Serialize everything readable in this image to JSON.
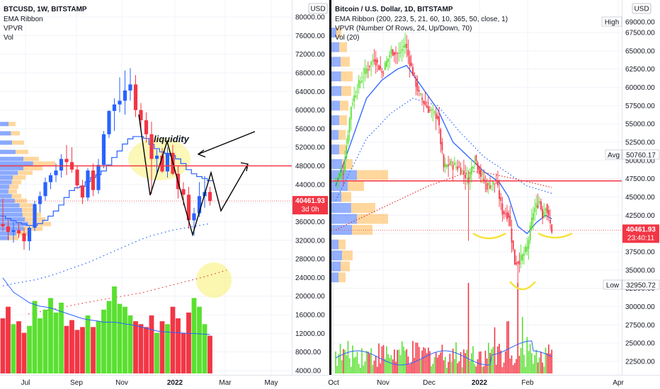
{
  "colors": {
    "up": "#5ae031",
    "down": "#f23645",
    "ema_blue": "#2962ff",
    "ema_red_dotted": "#e53935",
    "horizontal_line": "#f23645",
    "vpvr_blue": "#2962ff",
    "vpvr_orange": "#ffb74d",
    "highlight": "#f7f061",
    "price_tag": "#f23645",
    "divider": "#000000"
  },
  "chart_data": [
    {
      "type": "candlestick",
      "panel": "left",
      "title": "BTCUSD, 1W, BITSTAMP",
      "indicators": [
        "EMA Ribbon",
        "VPVR",
        "Vol"
      ],
      "currency": "USD",
      "y_ticks": [
        80000,
        76000,
        72000,
        68000,
        64000,
        60000,
        56000,
        52000,
        48000,
        44000,
        40000,
        36000,
        32000,
        28000,
        24000,
        20000,
        16000,
        12000,
        8000,
        4000
      ],
      "y_tick_labels": [
        "80000.00",
        "76000.00",
        "72000.00",
        "68000.00",
        "64000.00",
        "60000.00",
        "56000.00",
        "52000.00",
        "48000.00",
        "44000.00",
        "40000.00",
        "36000.00",
        "32000.00",
        "28000.00",
        "24000.00",
        "20000.00",
        "16000.00",
        "12000.00",
        "8000.00",
        "4000.00"
      ],
      "ylim": [
        2000,
        82000
      ],
      "x_ticks": [
        "Jul",
        "Sep",
        "Nov",
        "2022",
        "Mar",
        "May"
      ],
      "last_price": "40461.93",
      "countdown": "3d 0h",
      "horizontal_level": 48000,
      "annotations": [
        "liquidity"
      ],
      "candles": [
        {
          "o": 35500,
          "h": 41000,
          "l": 34000,
          "c": 35000
        },
        {
          "o": 35000,
          "h": 36500,
          "l": 32000,
          "c": 33800
        },
        {
          "o": 33800,
          "h": 36000,
          "l": 31500,
          "c": 34200
        },
        {
          "o": 34200,
          "h": 35800,
          "l": 32500,
          "c": 33500
        },
        {
          "o": 33500,
          "h": 34800,
          "l": 30000,
          "c": 31800
        },
        {
          "o": 31800,
          "h": 35000,
          "l": 29800,
          "c": 34700
        },
        {
          "o": 34700,
          "h": 40500,
          "l": 34000,
          "c": 39800
        },
        {
          "o": 39800,
          "h": 42500,
          "l": 38000,
          "c": 41500
        },
        {
          "o": 41500,
          "h": 45500,
          "l": 40500,
          "c": 44500
        },
        {
          "o": 44500,
          "h": 46500,
          "l": 43000,
          "c": 46000
        },
        {
          "o": 46000,
          "h": 48500,
          "l": 44500,
          "c": 47000
        },
        {
          "o": 47000,
          "h": 50500,
          "l": 45500,
          "c": 49500
        },
        {
          "o": 49500,
          "h": 52500,
          "l": 46000,
          "c": 48800
        },
        {
          "o": 48800,
          "h": 52000,
          "l": 46500,
          "c": 47200
        },
        {
          "o": 47200,
          "h": 48000,
          "l": 43000,
          "c": 43800
        },
        {
          "o": 43800,
          "h": 45000,
          "l": 39800,
          "c": 41200
        },
        {
          "o": 41200,
          "h": 47500,
          "l": 40500,
          "c": 47000
        },
        {
          "o": 47000,
          "h": 48500,
          "l": 41500,
          "c": 42800
        },
        {
          "o": 42800,
          "h": 49500,
          "l": 42000,
          "c": 48200
        },
        {
          "o": 48200,
          "h": 55500,
          "l": 47500,
          "c": 54800
        },
        {
          "o": 54800,
          "h": 60000,
          "l": 54000,
          "c": 59800
        },
        {
          "o": 59800,
          "h": 62500,
          "l": 55500,
          "c": 61200
        },
        {
          "o": 61200,
          "h": 67000,
          "l": 59500,
          "c": 62000
        },
        {
          "o": 62000,
          "h": 68500,
          "l": 59000,
          "c": 64200
        },
        {
          "o": 64200,
          "h": 69000,
          "l": 62000,
          "c": 65500
        },
        {
          "o": 65500,
          "h": 67500,
          "l": 58500,
          "c": 60000
        },
        {
          "o": 60000,
          "h": 61500,
          "l": 55500,
          "c": 57800
        },
        {
          "o": 57800,
          "h": 59500,
          "l": 53000,
          "c": 54800
        },
        {
          "o": 54800,
          "h": 57500,
          "l": 42000,
          "c": 49500
        },
        {
          "o": 49500,
          "h": 51500,
          "l": 46500,
          "c": 50200
        },
        {
          "o": 50200,
          "h": 51800,
          "l": 46500,
          "c": 46800
        },
        {
          "o": 46800,
          "h": 52000,
          "l": 45500,
          "c": 50800
        },
        {
          "o": 50800,
          "h": 52500,
          "l": 46000,
          "c": 46300
        },
        {
          "o": 46300,
          "h": 48000,
          "l": 41000,
          "c": 43000
        },
        {
          "o": 43000,
          "h": 44500,
          "l": 39500,
          "c": 41800
        },
        {
          "o": 41800,
          "h": 43500,
          "l": 34500,
          "c": 36300
        },
        {
          "o": 36300,
          "h": 39000,
          "l": 33000,
          "c": 37800
        },
        {
          "o": 37800,
          "h": 44500,
          "l": 37000,
          "c": 41500
        },
        {
          "o": 41500,
          "h": 45800,
          "l": 39000,
          "c": 42400
        },
        {
          "o": 42400,
          "h": 43500,
          "l": 39500,
          "c": 40460
        }
      ],
      "ema_blue": [
        37200,
        36700,
        36200,
        35800,
        35500,
        35200,
        35200,
        35600,
        36300,
        37200,
        38300,
        39600,
        41200,
        42700,
        43300,
        43600,
        44600,
        45500,
        46100,
        46900,
        48200,
        49800,
        51200,
        52700,
        53800,
        54300,
        54300,
        53900,
        52600,
        51700,
        51000,
        50600,
        50200,
        49500,
        48500,
        47200,
        46300,
        45700,
        45300,
        44800
      ],
      "ema_red_dotted": [
        22200,
        22400,
        22700,
        22900,
        23100,
        23300,
        23500,
        23800,
        24100,
        24400,
        24800,
        25200,
        25600,
        26000,
        26400,
        26800,
        27200,
        27700,
        28200,
        28700,
        29200,
        29700,
        30200,
        30700,
        31200,
        31700,
        32200,
        32600,
        33000,
        33300,
        33600,
        33900,
        34200,
        34400,
        34600,
        34800,
        35000,
        35200,
        35400,
        35600
      ],
      "volume": [
        9.5,
        11.5,
        8.5,
        9.0,
        7.0,
        8.2,
        12.5,
        9.5,
        11.0,
        13.0,
        10.5,
        12.2,
        8.2,
        9.2,
        7.5,
        8.0,
        10.0,
        8.0,
        9.0,
        11.0,
        12.5,
        15.0,
        12.0,
        11.5,
        10.0,
        9.0,
        8.5,
        8.0,
        10.0,
        7.0,
        9.0,
        8.5,
        11.5,
        9.5,
        7.0,
        10.5,
        13.0,
        11.5,
        8.5,
        6.5
      ],
      "volume_blue_line": [
        27.0,
        25.0,
        23.0,
        22.0,
        21.0,
        20.0,
        19.5,
        19.0,
        18.8,
        18.5,
        18.0,
        17.5,
        17.0,
        16.5,
        16.0,
        15.5,
        15.2,
        15.0,
        14.8,
        14.5,
        14.5,
        14.5,
        14.3,
        14.0,
        13.8,
        13.5,
        13.2,
        12.8,
        12.4,
        12.0,
        11.8,
        11.7,
        11.6,
        11.5,
        11.4,
        11.3,
        11.3,
        11.2,
        11.1,
        11.0
      ],
      "vpvr_levels": [
        {
          "price": 57000,
          "total": 22,
          "up": 0.55
        },
        {
          "price": 55000,
          "total": 28,
          "up": 0.55
        },
        {
          "price": 53000,
          "total": 34,
          "up": 0.5
        },
        {
          "price": 51000,
          "total": 40,
          "up": 0.55
        },
        {
          "price": 49500,
          "total": 55,
          "up": 0.6
        },
        {
          "price": 48500,
          "total": 78,
          "up": 0.6
        },
        {
          "price": 47500,
          "total": 60,
          "up": 0.55
        },
        {
          "price": 46500,
          "total": 46,
          "up": 0.55
        },
        {
          "price": 45500,
          "total": 36,
          "up": 0.5
        },
        {
          "price": 44500,
          "total": 30,
          "up": 0.55
        },
        {
          "price": 43500,
          "total": 26,
          "up": 0.5
        },
        {
          "price": 42500,
          "total": 24,
          "up": 0.5
        },
        {
          "price": 41500,
          "total": 30,
          "up": 0.55
        },
        {
          "price": 40500,
          "total": 38,
          "up": 0.55
        },
        {
          "price": 39500,
          "total": 46,
          "up": 0.6
        },
        {
          "price": 38500,
          "total": 52,
          "up": 0.6
        },
        {
          "price": 37500,
          "total": 58,
          "up": 0.55
        },
        {
          "price": 36500,
          "total": 64,
          "up": 0.55
        },
        {
          "price": 35500,
          "total": 72,
          "up": 0.55
        },
        {
          "price": 34500,
          "total": 60,
          "up": 0.55
        },
        {
          "price": 33500,
          "total": 42,
          "up": 0.55
        },
        {
          "price": 32500,
          "total": 26,
          "up": 0.5
        }
      ]
    },
    {
      "type": "candlestick",
      "panel": "right",
      "title": "Bitcoin / U.S. Dollar, 1D, BITSTAMP",
      "indicators": [
        "EMA Ribbon (200, 223, 5, 21, 60, 10, 365, 50, close, 1)",
        "VPVR (Number Of Rows, 24, Up/Down, 70)",
        "Vol (20)"
      ],
      "currency": "USD",
      "y_ticks": [
        69000,
        67500,
        65000,
        62500,
        60000,
        57500,
        55000,
        52500,
        50000,
        47500,
        45000,
        42500,
        40000,
        37500,
        35000,
        32500,
        30000,
        27500,
        25000,
        22500
      ],
      "y_tick_labels": [
        "69000.00",
        "67500.00",
        "65000.00",
        "62500.00",
        "60000.00",
        "57500.00",
        "55000.00",
        "52500.00",
        "50000.00",
        "47500.00",
        "45000.00",
        "42500.00",
        "40000.00",
        "37500.00",
        "35000.00",
        "32500.00",
        "30000.00",
        "27500.00",
        "25000.00",
        "22500.00"
      ],
      "ylim": [
        21500,
        70000
      ],
      "x_ticks": [
        "Oct",
        "Nov",
        "Dec",
        "2022",
        "Feb",
        "Apr"
      ],
      "high_label": "High",
      "avg_label": "Avg",
      "avg_value": "50760.17",
      "low_label": "Low",
      "low_value": "32950.72",
      "last_price": "40461.93",
      "countdown": "23:40:11",
      "horizontal_level": 47200,
      "anchors": [
        {
          "i": 0,
          "c": 47500
        },
        {
          "i": 5,
          "c": 48500
        },
        {
          "i": 10,
          "c": 57500
        },
        {
          "i": 14,
          "c": 60000
        },
        {
          "i": 20,
          "c": 62500
        },
        {
          "i": 25,
          "c": 64000
        },
        {
          "i": 30,
          "c": 62000
        },
        {
          "i": 36,
          "c": 65000
        },
        {
          "i": 41,
          "c": 64500
        },
        {
          "i": 45,
          "c": 66000
        },
        {
          "i": 48,
          "c": 63500
        },
        {
          "i": 54,
          "c": 59000
        },
        {
          "i": 60,
          "c": 57000
        },
        {
          "i": 66,
          "c": 56000
        },
        {
          "i": 70,
          "c": 49000
        },
        {
          "i": 74,
          "c": 49500
        },
        {
          "i": 80,
          "c": 49000
        },
        {
          "i": 86,
          "c": 47500
        },
        {
          "i": 90,
          "c": 50500
        },
        {
          "i": 94,
          "c": 48000
        },
        {
          "i": 98,
          "c": 46500
        },
        {
          "i": 104,
          "c": 47000
        },
        {
          "i": 108,
          "c": 43000
        },
        {
          "i": 112,
          "c": 42500
        },
        {
          "i": 116,
          "c": 36000
        },
        {
          "i": 120,
          "c": 36500
        },
        {
          "i": 124,
          "c": 38000
        },
        {
          "i": 128,
          "c": 43000
        },
        {
          "i": 132,
          "c": 44500
        },
        {
          "i": 134,
          "c": 42500
        },
        {
          "i": 136,
          "c": 44000
        },
        {
          "i": 138,
          "c": 42000
        },
        {
          "i": 140,
          "c": 40460
        }
      ],
      "spikes": [
        {
          "i": 86,
          "l": 39000
        },
        {
          "i": 118,
          "l": 33000
        }
      ],
      "ema_blue_anchors": [
        {
          "i": 0,
          "v": 46500
        },
        {
          "i": 10,
          "v": 52500
        },
        {
          "i": 20,
          "v": 58500
        },
        {
          "i": 30,
          "v": 61000
        },
        {
          "i": 40,
          "v": 62500
        },
        {
          "i": 46,
          "v": 63000
        },
        {
          "i": 56,
          "v": 60000
        },
        {
          "i": 66,
          "v": 57000
        },
        {
          "i": 76,
          "v": 52500
        },
        {
          "i": 86,
          "v": 50500
        },
        {
          "i": 96,
          "v": 48500
        },
        {
          "i": 106,
          "v": 47000
        },
        {
          "i": 112,
          "v": 45000
        },
        {
          "i": 118,
          "v": 41000
        },
        {
          "i": 124,
          "v": 40000
        },
        {
          "i": 130,
          "v": 41500
        },
        {
          "i": 136,
          "v": 42500
        },
        {
          "i": 140,
          "v": 42000
        }
      ],
      "ema_blue_dotted_anchors": [
        {
          "i": 0,
          "v": 44500
        },
        {
          "i": 20,
          "v": 53000
        },
        {
          "i": 36,
          "v": 56500
        },
        {
          "i": 50,
          "v": 58500
        },
        {
          "i": 66,
          "v": 57500
        },
        {
          "i": 80,
          "v": 54000
        },
        {
          "i": 96,
          "v": 50500
        },
        {
          "i": 110,
          "v": 48500
        },
        {
          "i": 124,
          "v": 46500
        },
        {
          "i": 140,
          "v": 45500
        }
      ],
      "ema_red_anchors": [
        {
          "i": 0,
          "v": 40500
        },
        {
          "i": 20,
          "v": 42500
        },
        {
          "i": 40,
          "v": 44500
        },
        {
          "i": 60,
          "v": 46500
        },
        {
          "i": 80,
          "v": 48000
        },
        {
          "i": 90,
          "v": 48500
        },
        {
          "i": 100,
          "v": 48200
        },
        {
          "i": 120,
          "v": 47300
        },
        {
          "i": 140,
          "v": 46300
        }
      ],
      "volume_seed": 7,
      "vpvr_levels": [
        {
          "price": 67500,
          "total": 14,
          "up": 0.5
        },
        {
          "price": 65500,
          "total": 22,
          "up": 0.5
        },
        {
          "price": 63500,
          "total": 26,
          "up": 0.5
        },
        {
          "price": 61500,
          "total": 30,
          "up": 0.45
        },
        {
          "price": 59500,
          "total": 28,
          "up": 0.5
        },
        {
          "price": 57500,
          "total": 24,
          "up": 0.5
        },
        {
          "price": 55500,
          "total": 22,
          "up": 0.5
        },
        {
          "price": 53500,
          "total": 20,
          "up": 0.5
        },
        {
          "price": 51500,
          "total": 22,
          "up": 0.5
        },
        {
          "price": 49500,
          "total": 30,
          "up": 0.5
        },
        {
          "price": 48000,
          "total": 80,
          "up": 0.45
        },
        {
          "price": 46500,
          "total": 46,
          "up": 0.5
        },
        {
          "price": 45000,
          "total": 28,
          "up": 0.5
        },
        {
          "price": 43500,
          "total": 62,
          "up": 0.45
        },
        {
          "price": 42000,
          "total": 80,
          "up": 0.45
        },
        {
          "price": 40500,
          "total": 58,
          "up": 0.5
        },
        {
          "price": 38500,
          "total": 20,
          "up": 0.5
        },
        {
          "price": 37000,
          "total": 30,
          "up": 0.5
        },
        {
          "price": 35500,
          "total": 26,
          "up": 0.5
        },
        {
          "price": 34000,
          "total": 20,
          "up": 0.5
        }
      ]
    }
  ]
}
